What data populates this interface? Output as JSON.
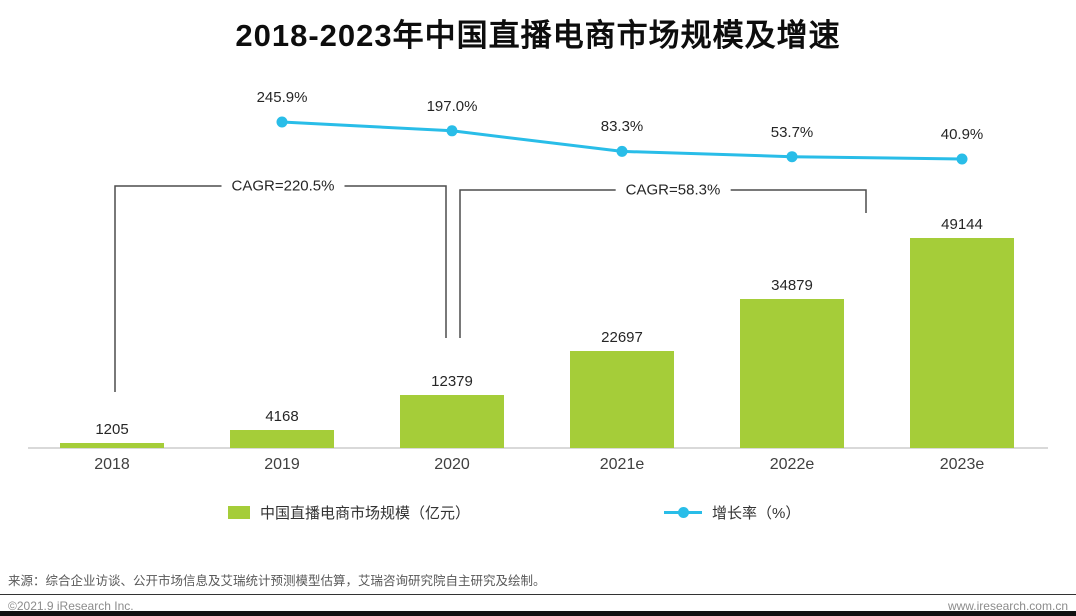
{
  "title": "2018-2023年中国直播电商市场规模及增速",
  "chart_data": {
    "type": "bar",
    "categories": [
      "2018",
      "2019",
      "2020",
      "2021e",
      "2022e",
      "2023e"
    ],
    "series": [
      {
        "name": "中国直播电商市场规模（亿元）",
        "type": "bar",
        "color": "#a5cd39",
        "values": [
          1205,
          4168,
          12379,
          22697,
          34879,
          49144
        ],
        "value_labels": [
          "1205",
          "4168",
          "12379",
          "22697",
          "34879",
          "49144"
        ]
      },
      {
        "name": "增长率（%）",
        "type": "line",
        "color": "#29bde8",
        "values": [
          null,
          245.9,
          197.0,
          83.3,
          53.7,
          40.9
        ],
        "value_labels": [
          "",
          "245.9%",
          "197.0%",
          "83.3%",
          "53.7%",
          "40.9%"
        ]
      }
    ],
    "annotations": [
      {
        "label": "CAGR=220.5%",
        "from": "2018",
        "to": "2020"
      },
      {
        "label": "CAGR=58.3%",
        "from": "2020",
        "to": "2023e"
      }
    ],
    "legend_position": "bottom",
    "grid": false,
    "xlabel": "",
    "ylabel": ""
  },
  "legend": {
    "bar_label": "中国直播电商市场规模（亿元）",
    "line_label": "增长率（%）"
  },
  "source": "来源：综合企业访谈、公开市场信息及艾瑞统计预测模型估算，艾瑞咨询研究院自主研究及绘制。",
  "footer": {
    "left": "©2021.9 iResearch Inc.",
    "right": "www.iresearch.com.cn"
  },
  "colors": {
    "bar": "#a5cd39",
    "line": "#29bde8",
    "axis": "#d9d9d9",
    "bracket": "#4d4d4d"
  }
}
